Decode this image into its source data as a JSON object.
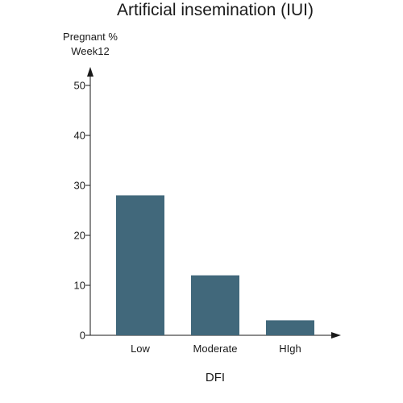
{
  "chart_data": {
    "type": "bar",
    "title": "Artificial insemination (IUI)",
    "ylabel_lines": [
      "Pregnant %",
      "Week12"
    ],
    "xlabel": "DFI",
    "categories": [
      "Low",
      "Moderate",
      "High"
    ],
    "category_labels": [
      "Low",
      "Moderate",
      "HIgh"
    ],
    "values": [
      28,
      12,
      3
    ],
    "ylim": [
      0,
      50
    ],
    "yticks": [
      0,
      10,
      20,
      30,
      40,
      50
    ],
    "grid": false,
    "bar_color": "#41687b"
  }
}
